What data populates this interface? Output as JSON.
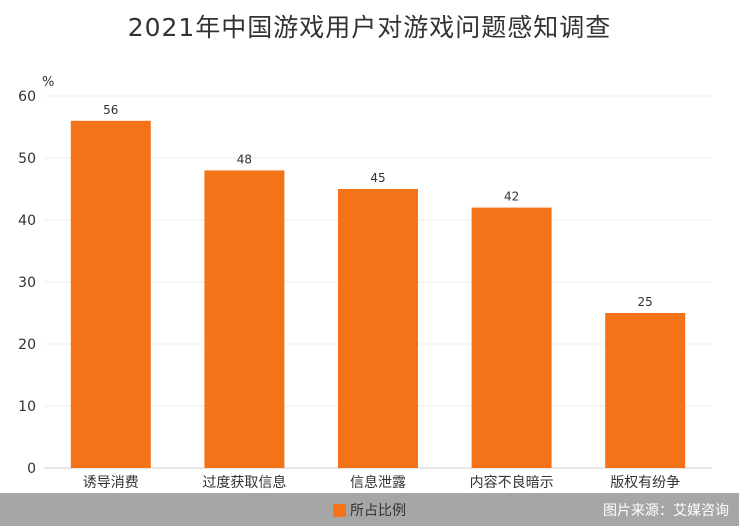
{
  "chart_data": {
    "type": "bar",
    "title": "2021年中国游戏用户对游戏问题感知调查",
    "ylabel": "%",
    "xlabel": "",
    "categories": [
      "诱导消费",
      "过度获取信息",
      "信息泄露",
      "内容不良暗示",
      "版权有纷争"
    ],
    "series": [
      {
        "name": "所占比例",
        "values": [
          56,
          48,
          45,
          42,
          25
        ],
        "color": "#f47318"
      }
    ],
    "ylim": [
      0,
      60
    ],
    "yticks": [
      0,
      10,
      20,
      30,
      40,
      50,
      60
    ],
    "grid": true,
    "legend_position": "bottom"
  },
  "source_text": "图片来源：艾媒咨询"
}
